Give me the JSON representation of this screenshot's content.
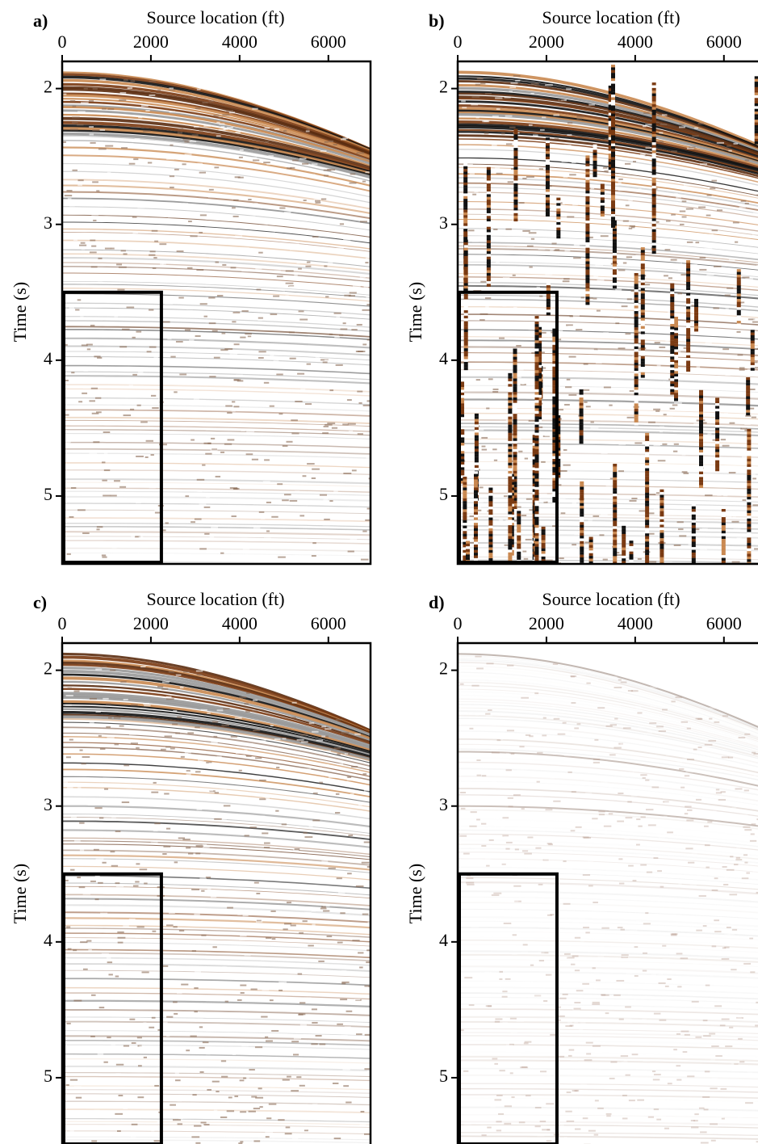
{
  "chart_data": [
    {
      "type": "seismic",
      "panel": "a)",
      "xlabel": "Source location (ft)",
      "ylabel": "Time (s)",
      "xlim": [
        0,
        6950
      ],
      "ylim": [
        1.8,
        5.5
      ],
      "xticks": [
        0,
        2000,
        4000,
        6000
      ],
      "yticks": [
        2,
        3,
        4,
        5
      ],
      "box": {
        "x": [
          0,
          2200
        ],
        "y": [
          3.5,
          5.5
        ]
      },
      "style": "clean"
    },
    {
      "type": "seismic",
      "panel": "b)",
      "xlabel": "Source location (ft)",
      "ylabel": "Time (s)",
      "xlim": [
        0,
        6950
      ],
      "ylim": [
        1.8,
        5.5
      ],
      "xticks": [
        0,
        2000,
        4000,
        6000
      ],
      "yticks": [
        2,
        3,
        4,
        5
      ],
      "box": {
        "x": [
          0,
          2200
        ],
        "y": [
          3.5,
          5.5
        ]
      },
      "style": "spiky"
    },
    {
      "type": "seismic",
      "panel": "c)",
      "xlabel": "Source location (ft)",
      "ylabel": "Time (s)",
      "xlim": [
        0,
        6950
      ],
      "ylim": [
        1.8,
        5.5
      ],
      "xticks": [
        0,
        2000,
        4000,
        6000
      ],
      "yticks": [
        2,
        3,
        4,
        5
      ],
      "box": {
        "x": [
          0,
          2200
        ],
        "y": [
          3.5,
          5.5
        ]
      },
      "style": "clean"
    },
    {
      "type": "seismic",
      "panel": "d)",
      "xlabel": "Source location (ft)",
      "ylabel": "Time (s)",
      "xlim": [
        0,
        6950
      ],
      "ylim": [
        1.8,
        5.5
      ],
      "xticks": [
        0,
        2000,
        4000,
        6000
      ],
      "yticks": [
        2,
        3,
        4,
        5
      ],
      "box": {
        "x": [
          0,
          2200
        ],
        "y": [
          3.5,
          5.5
        ]
      },
      "style": "faint"
    }
  ]
}
